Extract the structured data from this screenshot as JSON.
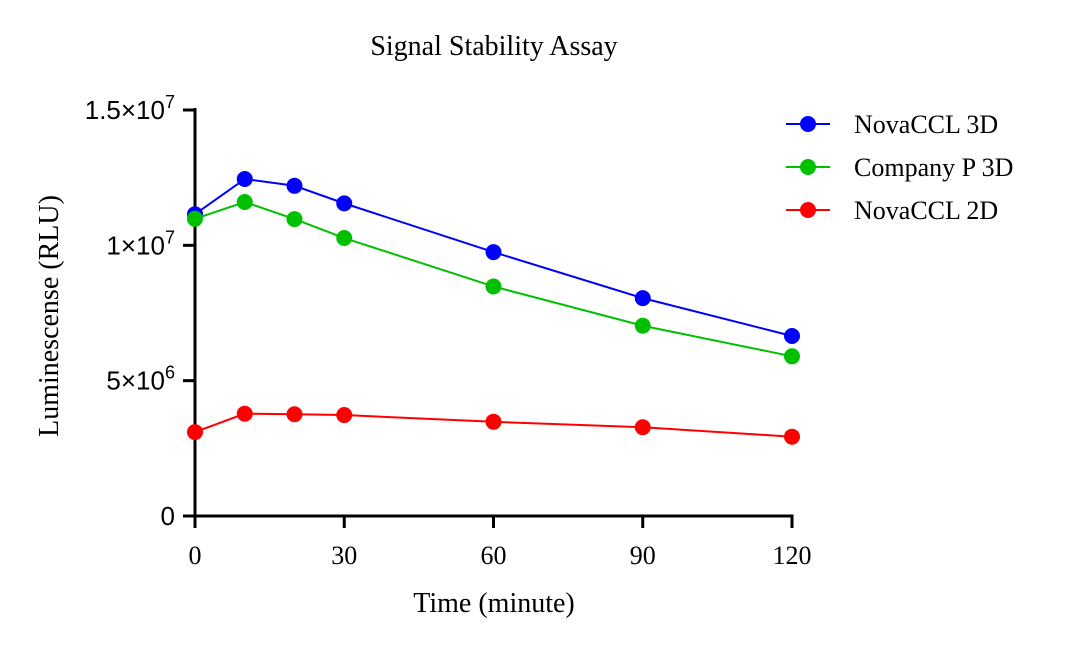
{
  "chart_data": {
    "type": "line",
    "title": "Signal Stability Assay",
    "xlabel": "Time (minute)",
    "ylabel": "Luminescense (RLU)",
    "x": [
      0,
      10,
      20,
      30,
      60,
      90,
      120
    ],
    "xlim": [
      0,
      120
    ],
    "ylim": [
      0,
      15000000
    ],
    "xticks": [
      0,
      30,
      60,
      90,
      120
    ],
    "xtick_labels": [
      "0",
      "30",
      "60",
      "90",
      "120"
    ],
    "yticks": [
      0,
      5000000,
      10000000,
      15000000
    ],
    "ytick_labels": [
      {
        "base": "0",
        "exp": ""
      },
      {
        "base": "5×10",
        "exp": "6"
      },
      {
        "base": "1×10",
        "exp": "7"
      },
      {
        "base": "1.5×10",
        "exp": "7"
      }
    ],
    "grid": false,
    "legend_position": "top-right",
    "series": [
      {
        "name": "NovaCCL 3D",
        "color": "#0000ff",
        "values": [
          11150000,
          12450000,
          12200000,
          11550000,
          9750000,
          8050000,
          6650000
        ]
      },
      {
        "name": "Company P 3D",
        "color": "#00c000",
        "values": [
          10980000,
          11600000,
          10970000,
          10270000,
          8480000,
          7030000,
          5900000
        ]
      },
      {
        "name": "NovaCCL 2D",
        "color": "#ff0000",
        "values": [
          3100000,
          3780000,
          3760000,
          3730000,
          3480000,
          3280000,
          2930000
        ]
      }
    ]
  }
}
